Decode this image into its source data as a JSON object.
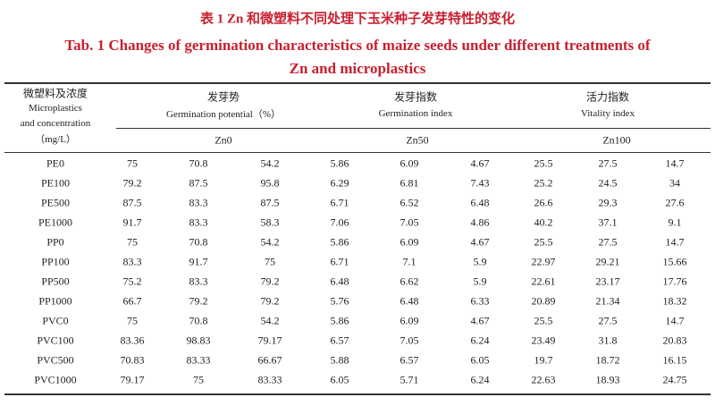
{
  "title_cn": "表 1   Zn 和微塑料不同处理下玉米种子发芽特性的变化",
  "title_en": "Tab. 1   Changes of germination characteristics of maize seeds under different treatments of Zn and microplastics",
  "table": {
    "header": {
      "row_label": [
        "微塑料及浓度",
        "Microplastics",
        "and concentration",
        "（mg/L）"
      ],
      "groups": [
        {
          "cn": "发芽势",
          "en": "Germination potential（%）"
        },
        {
          "cn": "发芽指数",
          "en": "Germination index"
        },
        {
          "cn": "活力指数",
          "en": "Vitality index"
        }
      ],
      "subgroups": [
        "Zn0",
        "Zn50",
        "Zn100"
      ]
    },
    "rows": [
      [
        "PE0",
        75,
        70.8,
        54.2,
        5.86,
        6.09,
        4.67,
        25.5,
        27.5,
        14.7
      ],
      [
        "PE100",
        79.2,
        87.5,
        95.8,
        6.29,
        6.81,
        7.43,
        25.2,
        24.5,
        34
      ],
      [
        "PE500",
        87.5,
        83.3,
        87.5,
        6.71,
        6.52,
        6.48,
        26.6,
        29.3,
        27.6
      ],
      [
        "PE1000",
        91.7,
        83.3,
        58.3,
        7.06,
        7.05,
        4.86,
        40.2,
        37.1,
        9.1
      ],
      [
        "PP0",
        75,
        70.8,
        54.2,
        5.86,
        6.09,
        4.67,
        25.5,
        27.5,
        14.7
      ],
      [
        "PP100",
        83.3,
        91.7,
        75,
        6.71,
        7.1,
        5.9,
        22.97,
        29.21,
        15.66
      ],
      [
        "PP500",
        75.2,
        83.3,
        79.2,
        6.48,
        6.62,
        5.9,
        22.61,
        23.17,
        17.76
      ],
      [
        "PP1000",
        66.7,
        79.2,
        79.2,
        5.76,
        6.48,
        6.33,
        20.89,
        21.34,
        18.32
      ],
      [
        "PVC0",
        75,
        70.8,
        54.2,
        5.86,
        6.09,
        4.67,
        25.5,
        27.5,
        14.7
      ],
      [
        "PVC100",
        83.36,
        98.83,
        79.17,
        6.57,
        7.05,
        6.24,
        23.49,
        31.8,
        20.83
      ],
      [
        "PVC500",
        70.83,
        83.33,
        66.67,
        5.88,
        6.57,
        6.05,
        19.7,
        18.72,
        16.15
      ],
      [
        "PVC1000",
        79.17,
        75,
        83.33,
        6.05,
        5.71,
        6.24,
        22.63,
        18.93,
        24.75
      ]
    ]
  }
}
